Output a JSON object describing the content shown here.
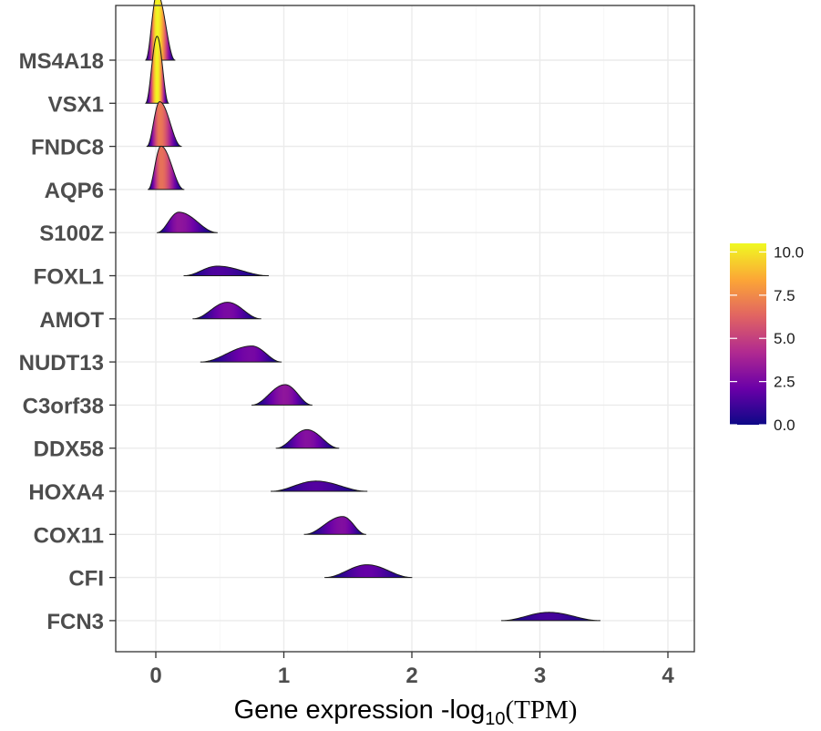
{
  "chart_data": {
    "type": "ridgeline",
    "xlabel": {
      "prefix": "Gene expression -log",
      "sub": "10",
      "suffix": "(TPM)"
    },
    "xlim": [
      -0.32,
      4.22
    ],
    "x_ticks": [
      0,
      1,
      2,
      3,
      4
    ],
    "x_tick_labels": [
      "0",
      "1",
      "2",
      "3",
      "4"
    ],
    "grid": true,
    "legend": {
      "position": "right",
      "type": "colorbar",
      "range": [
        0,
        10.5
      ],
      "ticks": [
        0.0,
        2.5,
        5.0,
        7.5,
        10.0
      ],
      "tick_labels": [
        "0.0",
        "2.5",
        "5.0",
        "7.5",
        "10.0"
      ],
      "colors": [
        "#0d0887",
        "#6a00a8",
        "#b12a90",
        "#e16462",
        "#fca636",
        "#f0f921"
      ]
    },
    "categories": [
      "MS4A18",
      "VSX1",
      "FNDC8",
      "AQP6",
      "S100Z",
      "FOXL1",
      "AMOT",
      "NUDT13",
      "C3orf38",
      "DDX58",
      "HOXA4",
      "COX11",
      "CFI",
      "FCN3"
    ],
    "series": [
      {
        "name": "MS4A18",
        "range": [
          -0.08,
          0.15
        ],
        "peak_x": 0.01,
        "peak_density": 10.5
      },
      {
        "name": "VSX1",
        "range": [
          -0.08,
          0.1
        ],
        "peak_x": 0.01,
        "peak_density": 10.5
      },
      {
        "name": "FNDC8",
        "range": [
          -0.07,
          0.2
        ],
        "peak_x": 0.03,
        "peak_density": 7.0
      },
      {
        "name": "AQP6",
        "range": [
          -0.06,
          0.22
        ],
        "peak_x": 0.04,
        "peak_density": 6.8
      },
      {
        "name": "S100Z",
        "range": [
          0.01,
          0.48
        ],
        "peak_x": 0.18,
        "peak_density": 3.2
      },
      {
        "name": "FOXL1",
        "range": [
          0.22,
          0.88
        ],
        "peak_x": 0.48,
        "peak_density": 1.5
      },
      {
        "name": "AMOT",
        "range": [
          0.29,
          0.82
        ],
        "peak_x": 0.56,
        "peak_density": 2.6
      },
      {
        "name": "NUDT13",
        "range": [
          0.35,
          0.98
        ],
        "peak_x": 0.75,
        "peak_density": 2.5
      },
      {
        "name": "C3orf38",
        "range": [
          0.75,
          1.22
        ],
        "peak_x": 1.01,
        "peak_density": 3.2
      },
      {
        "name": "DDX58",
        "range": [
          0.94,
          1.43
        ],
        "peak_x": 1.18,
        "peak_density": 2.9
      },
      {
        "name": "HOXA4",
        "range": [
          0.9,
          1.65
        ],
        "peak_x": 1.25,
        "peak_density": 1.6
      },
      {
        "name": "COX11",
        "range": [
          1.16,
          1.64
        ],
        "peak_x": 1.46,
        "peak_density": 2.8
      },
      {
        "name": "CFI",
        "range": [
          1.32,
          2.0
        ],
        "peak_x": 1.65,
        "peak_density": 2.0
      },
      {
        "name": "FCN3",
        "range": [
          2.7,
          3.47
        ],
        "peak_x": 3.07,
        "peak_density": 1.3
      }
    ]
  }
}
